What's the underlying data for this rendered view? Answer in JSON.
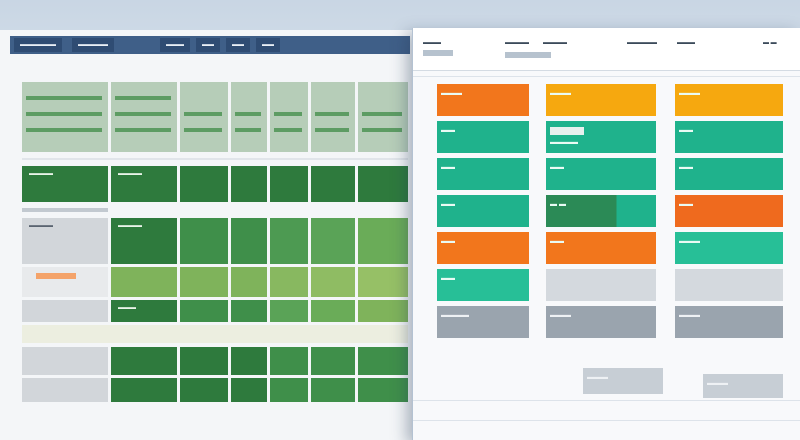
{
  "back_window": {
    "tabs": [
      "▬▬▬▬▬▬",
      "▬▬▬▬▬",
      "▬▬▬",
      "▬▬",
      "▬▬",
      "▬▬"
    ],
    "rows": [
      {
        "style": "row-green-dark",
        "first_label": "▬▬▬▬",
        "second_label": "▬▬▬▬"
      },
      {
        "style": "row-green",
        "first_label": "▬▬▬▬",
        "second_label": "▬▬▬▬"
      },
      {
        "style": "row-green-light",
        "first_label": "",
        "second_label": "▬▬▬"
      },
      {
        "style": "row-green",
        "first_label": "",
        "second_label": ""
      }
    ]
  },
  "front_window": {
    "header": {
      "left": "▬▬▬",
      "middle_a": "▬▬▬▬",
      "middle_b": "▬▬▬▬",
      "right_a": "▬▬▬▬▬",
      "right_b": "▬▬▬",
      "far_right": "▬ ▬"
    },
    "columns": [
      {
        "cells": [
          {
            "color": "orange",
            "label": "▬▬▬"
          },
          {
            "color": "teal",
            "label": "▬▬"
          },
          {
            "color": "teal",
            "label": "▬▬"
          },
          {
            "color": "teal",
            "label": "▬▬"
          },
          {
            "color": "orange",
            "label": "▬▬"
          },
          {
            "color": "teal2",
            "label": "▬▬"
          },
          {
            "color": "gray",
            "label": "▬▬▬▬"
          }
        ]
      },
      {
        "cells": [
          {
            "color": "amber",
            "label": "▬▬▬"
          },
          {
            "color": "teal",
            "label": "▬▬▬▬"
          },
          {
            "color": "teal",
            "label": "▬▬"
          },
          {
            "color": "dark-green",
            "label": "▬ ▬"
          },
          {
            "color": "orange",
            "label": "▬▬"
          },
          {
            "color": "lgray",
            "label": ""
          },
          {
            "color": "gray",
            "label": "▬▬▬"
          }
        ]
      },
      {
        "cells": [
          {
            "color": "amber",
            "label": "▬▬▬"
          },
          {
            "color": "teal",
            "label": "▬▬"
          },
          {
            "color": "teal",
            "label": "▬▬"
          },
          {
            "color": "orange-red",
            "label": "▬▬"
          },
          {
            "color": "teal2",
            "label": "▬▬▬"
          },
          {
            "color": "lgray",
            "label": ""
          },
          {
            "color": "gray",
            "label": "▬▬▬"
          }
        ]
      }
    ],
    "footer": {
      "a": "▬▬▬",
      "b": "▬▬▬"
    }
  },
  "colors": {
    "header_blue": "#3f5f88",
    "green_dark": "#2e7a3d",
    "teal": "#1fb28c",
    "orange": "#f2761c",
    "amber": "#f6a80f"
  }
}
